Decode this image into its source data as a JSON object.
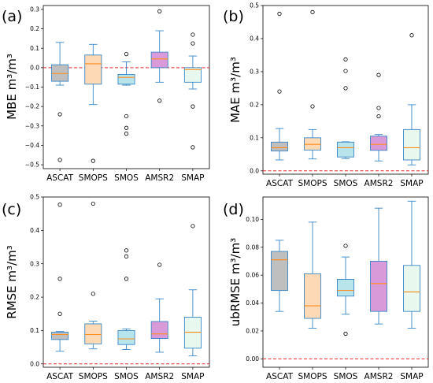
{
  "figure": {
    "colors": {
      "box_fills": [
        "#bfbfbf",
        "#fdd9b5",
        "#b8e4ec",
        "#d89ad8",
        "#e8f8ee"
      ],
      "box_edge": "#3a87c8",
      "median": "#ff8c1a",
      "reference_line": "#e8282b"
    }
  },
  "chart_data": [
    {
      "type": "box",
      "panel_label": "(a)",
      "ylabel": "MBE m³/m³",
      "ylim": [
        -0.52,
        0.32
      ],
      "yticks": [
        -0.5,
        -0.4,
        -0.3,
        -0.2,
        -0.1,
        0.0,
        0.1,
        0.2,
        0.3
      ],
      "ytick_labels": [
        "−0.5",
        "−0.4",
        "−0.3",
        "−0.2",
        "−0.1",
        "0.0",
        "0.1",
        "0.2",
        "0.3"
      ],
      "reference_line": 0,
      "categories": [
        "ASCAT",
        "SMOPS",
        "SMOS",
        "AMSR2",
        "SMAP"
      ],
      "boxes": [
        {
          "whislo": -0.09,
          "q1": -0.07,
          "med": -0.03,
          "q3": 0.015,
          "whishi": 0.13,
          "fliers": [
            -0.24,
            -0.475
          ]
        },
        {
          "whislo": -0.19,
          "q1": -0.085,
          "med": 0.02,
          "q3": 0.065,
          "whishi": 0.12,
          "fliers": [
            -0.48
          ]
        },
        {
          "whislo": -0.09,
          "q1": -0.085,
          "med": -0.05,
          "q3": -0.035,
          "whishi": 0.03,
          "fliers": [
            0.07,
            -0.25,
            -0.31,
            -0.34
          ]
        },
        {
          "whislo": -0.075,
          "q1": 0.0,
          "med": 0.045,
          "q3": 0.08,
          "whishi": 0.19,
          "fliers": [
            0.29,
            -0.17
          ]
        },
        {
          "whislo": -0.11,
          "q1": -0.075,
          "med": -0.01,
          "q3": 0.0,
          "whishi": 0.06,
          "fliers": [
            0.17,
            0.125,
            -0.2,
            -0.41
          ]
        }
      ]
    },
    {
      "type": "box",
      "panel_label": "(b)",
      "ylabel": "MAE m³/m³",
      "ylim": [
        -0.01,
        0.5
      ],
      "yticks": [
        0.0,
        0.1,
        0.2,
        0.3,
        0.4,
        0.5
      ],
      "ytick_labels": [
        "0.0",
        "0.1",
        "0.2",
        "0.3",
        "0.4",
        "0.5"
      ],
      "reference_line": 0,
      "categories": [
        "ASCAT",
        "SMOPS",
        "SMOS",
        "AMSR2",
        "SMAP"
      ],
      "boxes": [
        {
          "whislo": 0.033,
          "q1": 0.06,
          "med": 0.07,
          "q3": 0.087,
          "whishi": 0.128,
          "fliers": [
            0.475,
            0.24
          ]
        },
        {
          "whislo": 0.036,
          "q1": 0.063,
          "med": 0.08,
          "q3": 0.1,
          "whishi": 0.125,
          "fliers": [
            0.48,
            0.195
          ]
        },
        {
          "whislo": 0.037,
          "q1": 0.042,
          "med": 0.07,
          "q3": 0.087,
          "whishi": 0.088,
          "fliers": [
            0.337,
            0.302,
            0.25
          ]
        },
        {
          "whislo": 0.03,
          "q1": 0.062,
          "med": 0.08,
          "q3": 0.105,
          "whishi": 0.11,
          "fliers": [
            0.29,
            0.19,
            0.165
          ]
        },
        {
          "whislo": 0.018,
          "q1": 0.033,
          "med": 0.07,
          "q3": 0.125,
          "whishi": 0.2,
          "fliers": [
            0.41
          ]
        }
      ]
    },
    {
      "type": "box",
      "panel_label": "(c)",
      "ylabel": "RMSE m³/m³",
      "ylim": [
        -0.01,
        0.5
      ],
      "yticks": [
        0.0,
        0.1,
        0.2,
        0.3,
        0.4,
        0.5
      ],
      "ytick_labels": [
        "0.0",
        "0.1",
        "0.2",
        "0.3",
        "0.4",
        "0.5"
      ],
      "reference_line": 0,
      "categories": [
        "ASCAT",
        "SMOPS",
        "SMOS",
        "AMSR2",
        "SMAP"
      ],
      "boxes": [
        {
          "whislo": 0.038,
          "q1": 0.073,
          "med": 0.088,
          "q3": 0.095,
          "whishi": 0.097,
          "fliers": [
            0.477,
            0.255,
            0.15
          ]
        },
        {
          "whislo": 0.045,
          "q1": 0.06,
          "med": 0.088,
          "q3": 0.12,
          "whishi": 0.128,
          "fliers": [
            0.48,
            0.21
          ]
        },
        {
          "whislo": 0.043,
          "q1": 0.058,
          "med": 0.075,
          "q3": 0.1,
          "whishi": 0.105,
          "fliers": [
            0.34,
            0.322,
            0.255
          ]
        },
        {
          "whislo": 0.035,
          "q1": 0.076,
          "med": 0.09,
          "q3": 0.127,
          "whishi": 0.195,
          "fliers": [
            0.297
          ]
        },
        {
          "whislo": 0.024,
          "q1": 0.047,
          "med": 0.095,
          "q3": 0.14,
          "whishi": 0.222,
          "fliers": [
            0.413
          ]
        }
      ]
    },
    {
      "type": "box",
      "panel_label": "(d)",
      "ylabel": "ubRMSE m³/m³",
      "ylim": [
        -0.006,
        0.116
      ],
      "yticks": [
        0.0,
        0.02,
        0.04,
        0.06,
        0.08,
        0.1
      ],
      "ytick_labels": [
        "0.00",
        "0.02",
        "0.04",
        "0.06",
        "0.08",
        "0.10"
      ],
      "reference_line": 0,
      "categories": [
        "ASCAT",
        "SMOPS",
        "SMOS",
        "AMSR2",
        "SMAP"
      ],
      "boxes": [
        {
          "whislo": 0.034,
          "q1": 0.049,
          "med": 0.071,
          "q3": 0.077,
          "whishi": 0.085,
          "fliers": []
        },
        {
          "whislo": 0.022,
          "q1": 0.029,
          "med": 0.038,
          "q3": 0.061,
          "whishi": 0.098,
          "fliers": []
        },
        {
          "whislo": 0.032,
          "q1": 0.045,
          "med": 0.049,
          "q3": 0.057,
          "whishi": 0.073,
          "fliers": [
            0.081,
            0.018
          ]
        },
        {
          "whislo": 0.025,
          "q1": 0.034,
          "med": 0.054,
          "q3": 0.07,
          "whishi": 0.108,
          "fliers": []
        },
        {
          "whislo": 0.022,
          "q1": 0.034,
          "med": 0.048,
          "q3": 0.067,
          "whishi": 0.113,
          "fliers": []
        }
      ]
    }
  ]
}
